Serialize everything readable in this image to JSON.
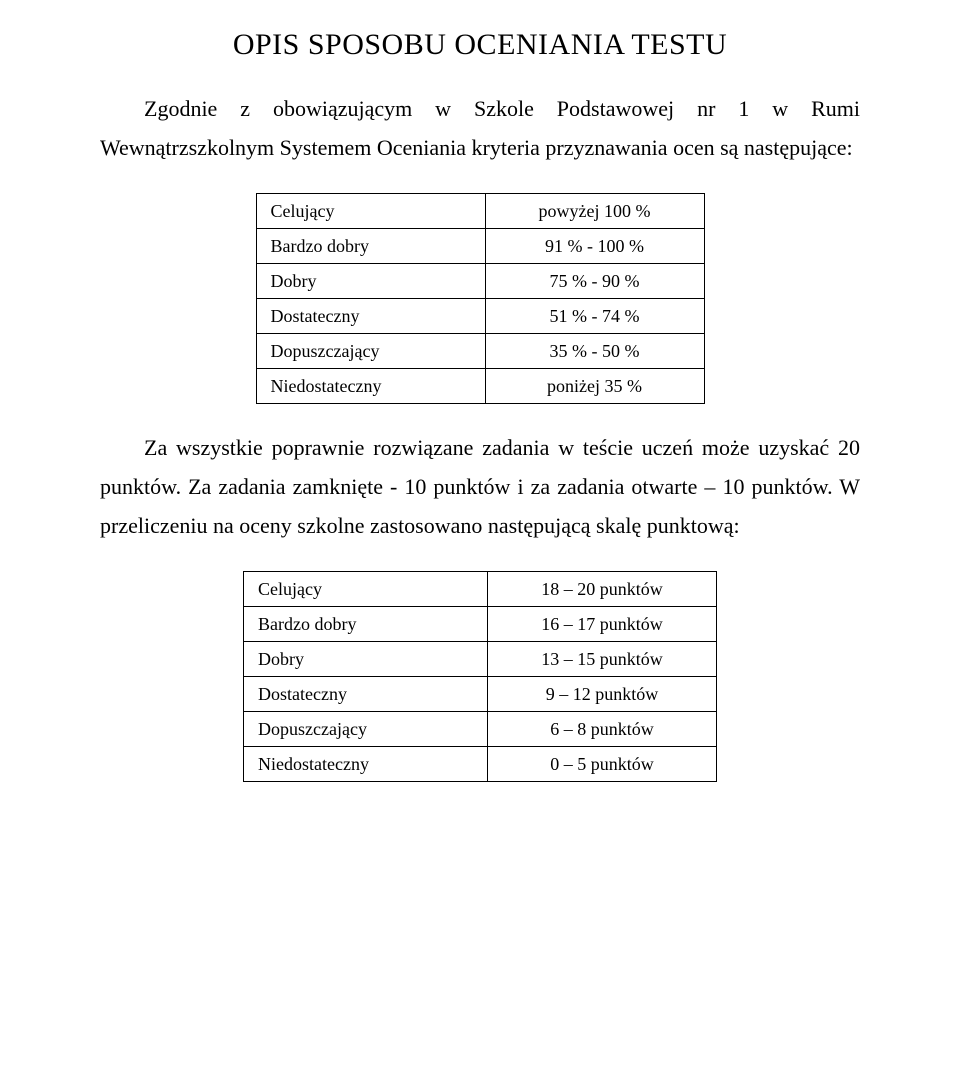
{
  "title": "OPIS SPOSOBU OCENIANIA TESTU",
  "intro": "Zgodnie z obowiązującym w Szkole Podstawowej nr 1 w Rumi Wewnątrzszkolnym Systemem Oceniania kryteria przyznawania ocen są następujące:",
  "table1": {
    "rows": [
      {
        "label": "Celujący",
        "value": "powyżej 100 %"
      },
      {
        "label": "Bardzo dobry",
        "value": "91 % - 100 %"
      },
      {
        "label": "Dobry",
        "value": "75 % - 90 %"
      },
      {
        "label": "Dostateczny",
        "value": "51 % - 74 %"
      },
      {
        "label": "Dopuszczający",
        "value": "35 % - 50 %"
      },
      {
        "label": "Niedostateczny",
        "value": "poniżej 35 %"
      }
    ]
  },
  "body": "Za wszystkie poprawnie rozwiązane zadania w teście uczeń może uzyskać 20 punktów. Za zadania zamknięte - 10 punktów i za zadania otwarte – 10 punktów. W przeliczeniu na oceny szkolne zastosowano następującą skalę punktową:",
  "table2": {
    "rows": [
      {
        "label": "Celujący",
        "value": "18 – 20 punktów"
      },
      {
        "label": "Bardzo dobry",
        "value": "16 – 17 punktów"
      },
      {
        "label": "Dobry",
        "value": "13 – 15 punktów"
      },
      {
        "label": "Dostateczny",
        "value": "9 – 12 punktów"
      },
      {
        "label": "Dopuszczający",
        "value": "6 – 8 punktów"
      },
      {
        "label": "Niedostateczny",
        "value": "0 – 5 punktów"
      }
    ]
  }
}
